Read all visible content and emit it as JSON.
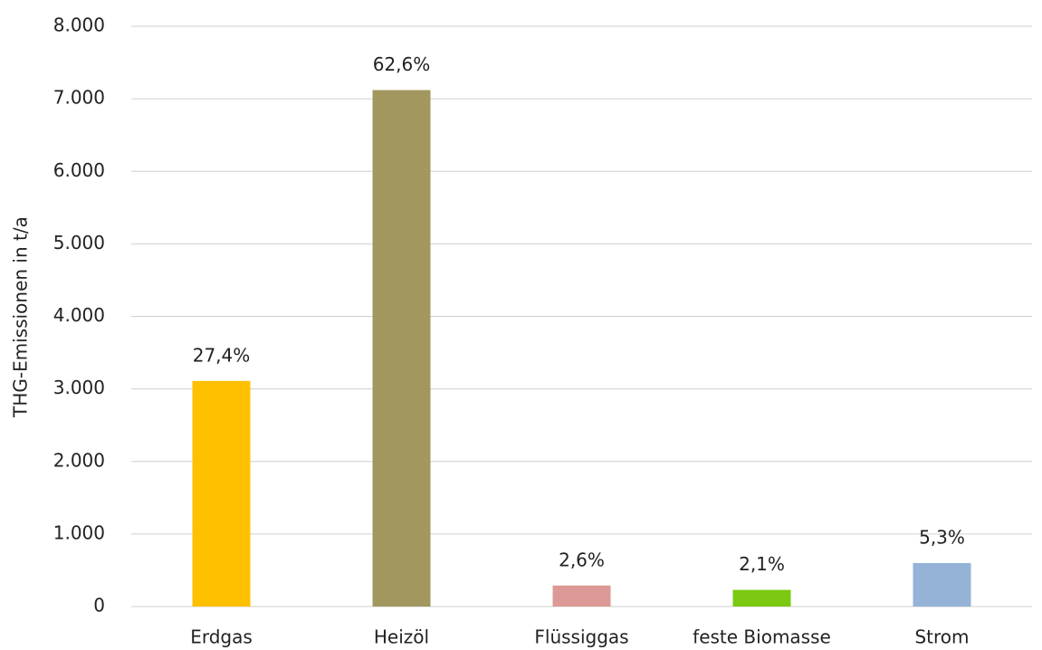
{
  "chart_data": {
    "type": "bar",
    "y_label": "THG-Emissionen in t/a",
    "categories": [
      "Erdgas",
      "Heizöl",
      "Flüssiggas",
      "feste Biomasse",
      "Strom"
    ],
    "values": [
      3110,
      7120,
      290,
      230,
      600
    ],
    "share_labels": [
      "27,4%",
      "62,6%",
      "2,6%",
      "2,1%",
      "5,3%"
    ],
    "colors": [
      "#ffc000",
      "#a39760",
      "#dc9995",
      "#7bc912",
      "#95b3d7"
    ],
    "ylim": [
      0,
      8000
    ],
    "yticks": [
      0,
      {
        "value": 1000,
        "label": "1.000"
      },
      {
        "value": 2000,
        "label": "2.000"
      },
      {
        "value": 3000,
        "label": "3.000"
      },
      {
        "value": 4000,
        "label": "4.000"
      },
      {
        "value": 5000,
        "label": "5.000"
      },
      {
        "value": 6000,
        "label": "6.000"
      },
      {
        "value": 7000,
        "label": "7.000"
      },
      {
        "value": 8000,
        "label": "8.000"
      }
    ],
    "grid": true
  }
}
